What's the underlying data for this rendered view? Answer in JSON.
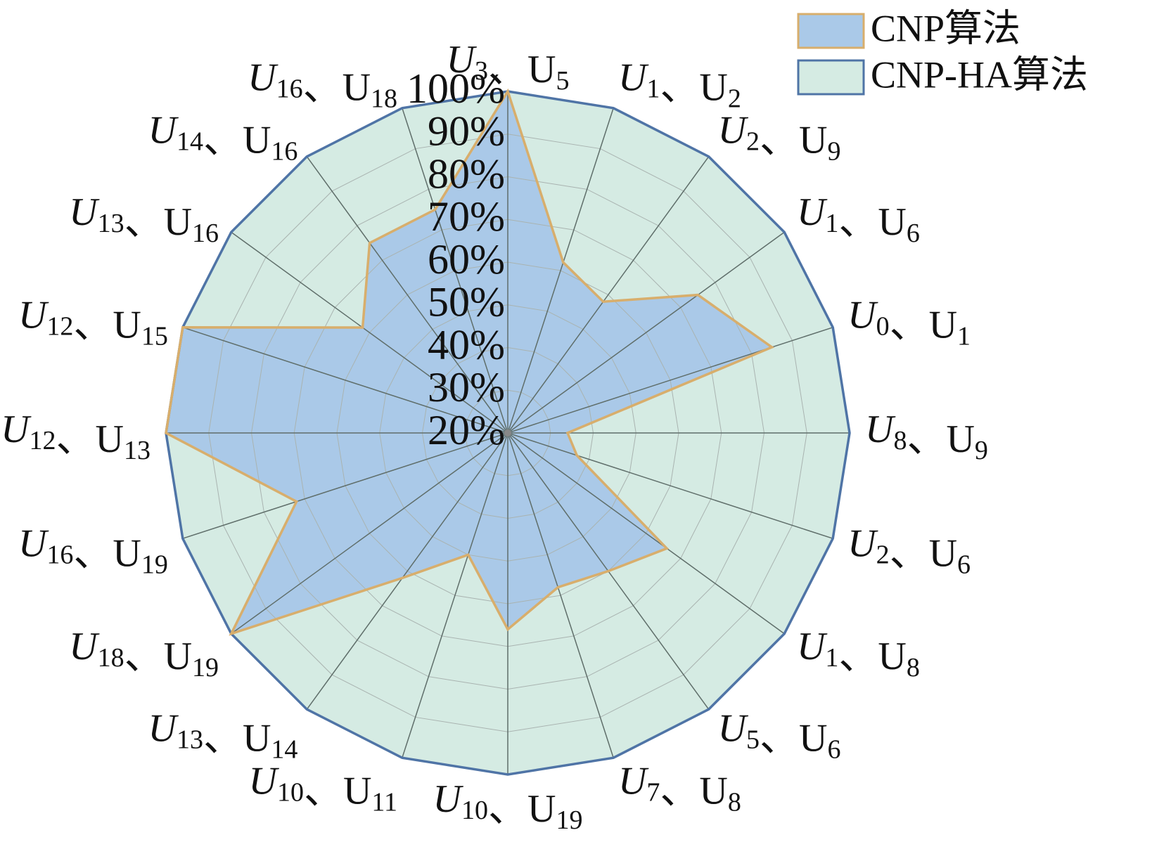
{
  "chart_data": {
    "type": "radar",
    "categories": [
      "U3、U5",
      "U1、U2",
      "U2、U9",
      "U1、U6",
      "U0、U1",
      "U8、U9",
      "U2、U6",
      "U1、U8",
      "U5、U6",
      "U7、U8",
      "U10、U19",
      "U10、U11",
      "U13、U14",
      "U18、U19",
      "U16、U19",
      "U12、U13",
      "U12、U15",
      "U13、U16",
      "U14、U16",
      "U16、U18"
    ],
    "series": [
      {
        "name": "CNP-HA算法",
        "color": "#d5ebe3",
        "edge_color": "#4f74a6",
        "values": [
          100,
          100,
          100,
          100,
          100,
          100,
          100,
          100,
          100,
          100,
          100,
          100,
          100,
          100,
          100,
          100,
          100,
          100,
          100,
          100
        ]
      },
      {
        "name": "CNP算法",
        "color": "#aac9e8",
        "edge_color": "#d8ae6c",
        "values": [
          100,
          62,
          58,
          75,
          85,
          34,
          37,
          66,
          60,
          58,
          66,
          50,
          62,
          100,
          72,
          100,
          100,
          62,
          75,
          75
        ]
      }
    ],
    "rlim": [
      20,
      100
    ],
    "rticks": [
      {
        "value": 20,
        "label": "20%"
      },
      {
        "value": 30,
        "label": "30%"
      },
      {
        "value": 40,
        "label": "40%"
      },
      {
        "value": 50,
        "label": "50%"
      },
      {
        "value": 60,
        "label": "60%"
      },
      {
        "value": 70,
        "label": "70%"
      },
      {
        "value": 80,
        "label": "80%"
      },
      {
        "value": 90,
        "label": "90%"
      },
      {
        "value": 100,
        "label": "100%"
      }
    ],
    "grid": true,
    "legend": "upper right"
  }
}
